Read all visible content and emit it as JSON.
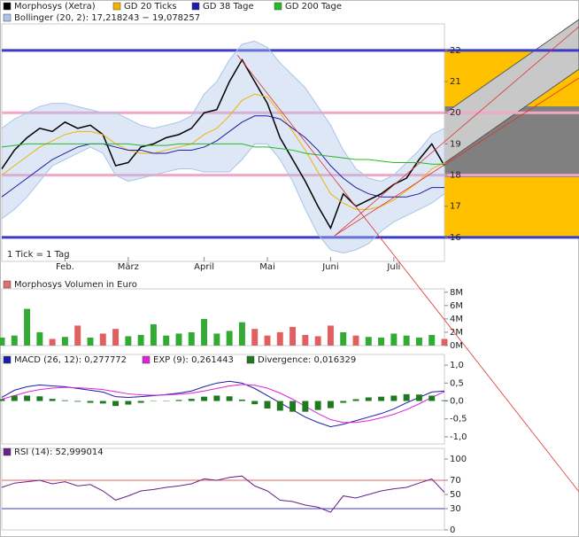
{
  "chart_data": [
    {
      "type": "line",
      "categories": [
        null,
        null,
        null,
        null,
        null,
        "Feb.",
        null,
        null,
        null,
        null,
        "März",
        null,
        null,
        null,
        null,
        null,
        "April",
        null,
        null,
        null,
        null,
        "Mai",
        null,
        null,
        null,
        null,
        "Juni",
        null,
        null,
        null,
        null,
        "Juli",
        null,
        null,
        null,
        null
      ],
      "series": [
        {
          "name": "Morphosys (Xetra)",
          "color": "#000000",
          "values": [
            18.2,
            18.8,
            19.2,
            19.5,
            19.4,
            19.7,
            19.5,
            19.6,
            19.3,
            18.3,
            18.4,
            18.9,
            19.0,
            19.2,
            19.3,
            19.5,
            20.0,
            20.1,
            21.0,
            21.7,
            21.0,
            20.3,
            19.2,
            18.5,
            17.8,
            17.0,
            16.3,
            17.4,
            17.0,
            17.2,
            17.4,
            17.7,
            17.9,
            18.5,
            19.0,
            18.3
          ]
        },
        {
          "name": "GD 20 Ticks",
          "color": "#f0b400",
          "values": [
            18.0,
            18.3,
            18.6,
            18.9,
            19.1,
            19.3,
            19.4,
            19.4,
            19.3,
            19.0,
            18.8,
            18.7,
            18.7,
            18.8,
            18.9,
            19.0,
            19.3,
            19.5,
            19.9,
            20.4,
            20.6,
            20.5,
            20.0,
            19.4,
            18.8,
            18.1,
            17.4,
            17.1,
            16.9,
            16.9,
            17.0,
            17.2,
            17.5,
            17.8,
            18.2,
            18.4
          ]
        },
        {
          "name": "GD 38 Tage",
          "color": "#1c1ca8",
          "values": [
            17.3,
            17.6,
            17.9,
            18.2,
            18.5,
            18.7,
            18.9,
            19.0,
            19.0,
            18.9,
            18.8,
            18.8,
            18.7,
            18.7,
            18.8,
            18.8,
            18.9,
            19.1,
            19.4,
            19.7,
            19.9,
            19.9,
            19.8,
            19.5,
            19.2,
            18.8,
            18.3,
            17.9,
            17.6,
            17.4,
            17.3,
            17.3,
            17.3,
            17.4,
            17.6,
            17.6
          ]
        },
        {
          "name": "GD 200 Tage",
          "color": "#22bb22",
          "values": [
            18.9,
            18.95,
            19.0,
            19.0,
            19.0,
            19.0,
            19.0,
            19.0,
            19.0,
            19.0,
            19.0,
            18.95,
            18.95,
            18.95,
            19.0,
            19.0,
            19.0,
            19.0,
            19.0,
            19.0,
            18.9,
            18.9,
            18.85,
            18.8,
            18.7,
            18.65,
            18.6,
            18.55,
            18.5,
            18.5,
            18.45,
            18.4,
            18.4,
            18.4,
            18.35,
            18.35
          ]
        }
      ],
      "band": {
        "name": "Bollinger (20, 2): 17,218243 − 19,078257",
        "color": "#a9c4e8",
        "upper": [
          19.5,
          19.8,
          20.0,
          20.2,
          20.3,
          20.3,
          20.2,
          20.1,
          20.0,
          20.0,
          19.8,
          19.6,
          19.5,
          19.6,
          19.7,
          19.9,
          20.6,
          21.0,
          21.7,
          22.2,
          22.3,
          22.1,
          21.6,
          21.2,
          20.8,
          20.2,
          19.6,
          18.8,
          18.2,
          17.9,
          17.8,
          18.0,
          18.4,
          18.8,
          19.3,
          19.5
        ],
        "lower": [
          16.6,
          16.9,
          17.3,
          17.8,
          18.3,
          18.5,
          18.7,
          18.9,
          18.7,
          18.0,
          17.8,
          17.9,
          18.0,
          18.1,
          18.2,
          18.2,
          18.1,
          18.1,
          18.1,
          18.5,
          19.0,
          19.0,
          18.5,
          17.8,
          16.9,
          16.1,
          15.6,
          15.5,
          15.6,
          15.8,
          16.2,
          16.5,
          16.7,
          16.9,
          17.1,
          17.4
        ]
      },
      "levels": [
        {
          "value": 22,
          "color": "#3b3bc8"
        },
        {
          "value": 20,
          "color": "#f4a6c8"
        },
        {
          "value": 18,
          "color": "#f4a6c8"
        },
        {
          "value": 16,
          "color": "#3b3bc8"
        }
      ],
      "note": "1 Tick = 1 Tag",
      "ylim": [
        15.23,
        22.85
      ],
      "yticks": [
        16,
        17,
        18,
        19,
        20,
        21,
        22
      ]
    },
    {
      "type": "bar",
      "title": "Morphosys Volumen in Euro",
      "title_color": "#e07070",
      "values": [
        1.2,
        1.5,
        5.5,
        2.0,
        1.0,
        1.3,
        3.0,
        1.2,
        1.8,
        2.5,
        1.4,
        1.6,
        3.2,
        1.5,
        1.8,
        2.0,
        4.0,
        1.8,
        2.2,
        3.5,
        2.5,
        1.5,
        2.0,
        2.8,
        1.6,
        1.4,
        3.0,
        2.0,
        1.5,
        1.3,
        1.2,
        1.8,
        1.5,
        1.2,
        1.6,
        1.0
      ],
      "up_color": "#33aa33",
      "down_color": "#e06060",
      "ylim": [
        0,
        8.5
      ],
      "yticks": [
        {
          "value": 0,
          "label": "0M"
        },
        {
          "value": 2,
          "label": "2M"
        },
        {
          "value": 4,
          "label": "4M"
        },
        {
          "value": 6,
          "label": "6M"
        },
        {
          "value": 8,
          "label": "8M"
        }
      ]
    },
    {
      "type": "line",
      "series": [
        {
          "name": "MACD (26, 12): 0,277772",
          "color": "#1c1ca8",
          "values": [
            0.1,
            0.3,
            0.4,
            0.45,
            0.42,
            0.4,
            0.35,
            0.3,
            0.25,
            0.12,
            0.1,
            0.12,
            0.15,
            0.18,
            0.22,
            0.28,
            0.4,
            0.5,
            0.55,
            0.5,
            0.35,
            0.15,
            -0.05,
            -0.25,
            -0.45,
            -0.6,
            -0.72,
            -0.65,
            -0.55,
            -0.45,
            -0.35,
            -0.22,
            -0.05,
            0.1,
            0.25,
            0.28
          ]
        },
        {
          "name": "EXP (9): 0,261443",
          "color": "#dd22dd",
          "values": [
            0.05,
            0.15,
            0.25,
            0.32,
            0.36,
            0.38,
            0.37,
            0.35,
            0.32,
            0.26,
            0.2,
            0.17,
            0.16,
            0.17,
            0.19,
            0.22,
            0.28,
            0.35,
            0.42,
            0.46,
            0.44,
            0.36,
            0.22,
            0.05,
            -0.15,
            -0.35,
            -0.52,
            -0.6,
            -0.6,
            -0.55,
            -0.47,
            -0.37,
            -0.24,
            -0.08,
            0.1,
            0.26
          ]
        },
        {
          "name": "Divergence: 0,016329",
          "color": "#1f7a1f",
          "kind": "bar",
          "values": [
            0.05,
            0.15,
            0.15,
            0.13,
            0.06,
            0.02,
            -0.02,
            -0.05,
            -0.07,
            -0.14,
            -0.1,
            -0.05,
            -0.01,
            0.01,
            0.03,
            0.06,
            0.12,
            0.15,
            0.13,
            0.04,
            -0.09,
            -0.21,
            -0.27,
            -0.3,
            -0.3,
            -0.25,
            -0.2,
            -0.05,
            0.05,
            0.1,
            0.12,
            0.15,
            0.19,
            0.18,
            0.15,
            0.02
          ]
        }
      ],
      "ylim": [
        -1.2,
        1.3
      ],
      "yticks": [
        {
          "value": -1,
          "label": "-1,0"
        },
        {
          "value": -0.5,
          "label": "-0,5"
        },
        {
          "value": 0,
          "label": "0,0"
        },
        {
          "value": 0.5,
          "label": "0,5"
        },
        {
          "value": 1,
          "label": "1,0"
        }
      ]
    },
    {
      "type": "line",
      "series": [
        {
          "name": "RSI (14): 52,999014",
          "color": "#662288",
          "values": [
            60,
            66,
            68,
            70,
            65,
            68,
            62,
            64,
            55,
            42,
            48,
            55,
            57,
            60,
            62,
            65,
            72,
            70,
            74,
            76,
            62,
            55,
            42,
            40,
            35,
            32,
            25,
            48,
            45,
            50,
            55,
            58,
            60,
            66,
            72,
            53
          ]
        }
      ],
      "levels": [
        {
          "value": 70,
          "color": "#e06060"
        },
        {
          "value": 30,
          "color": "#3b3bc8"
        }
      ],
      "ylim": [
        0,
        115
      ],
      "yticks": [
        0,
        30,
        50,
        70,
        100
      ]
    }
  ]
}
